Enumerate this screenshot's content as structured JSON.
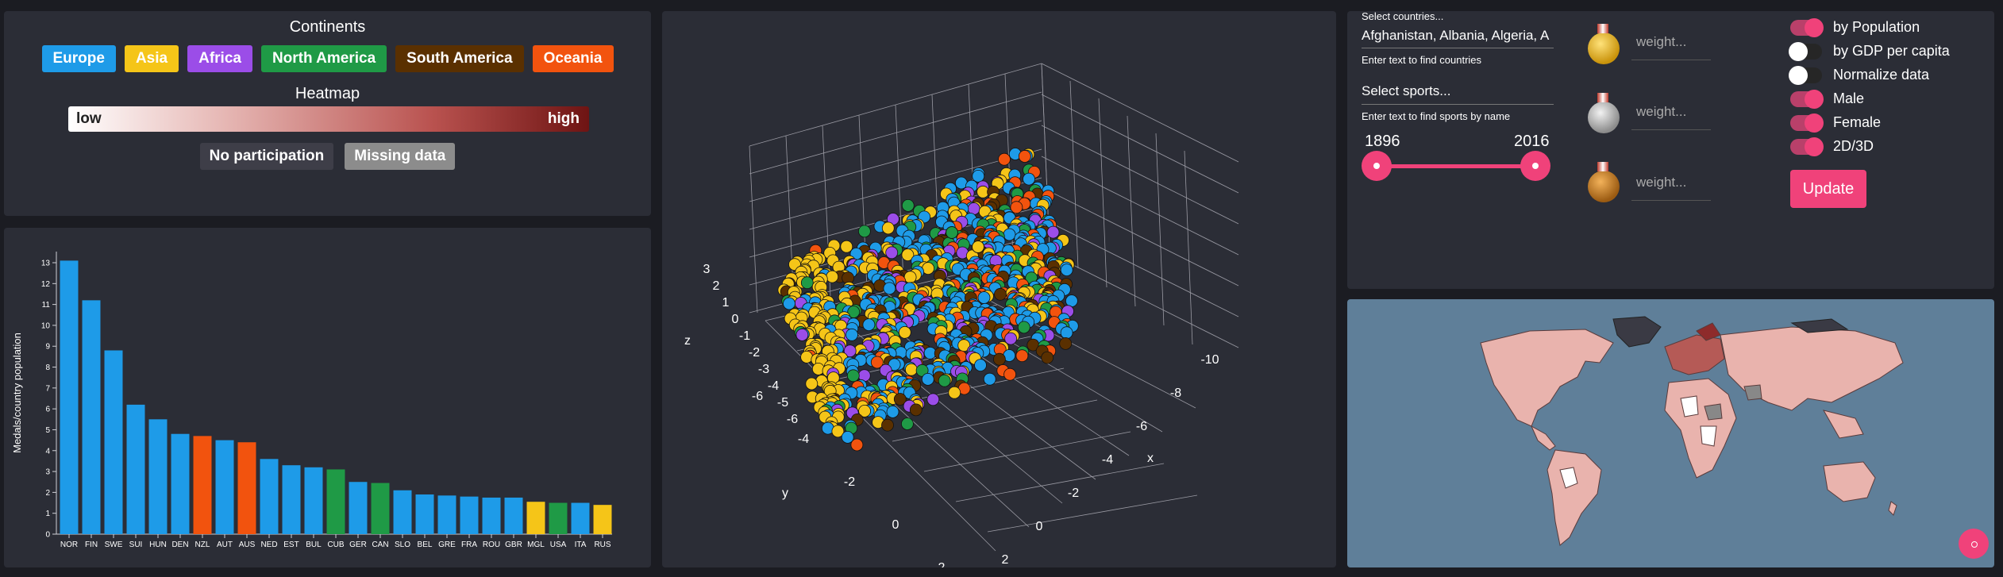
{
  "legend": {
    "continents_title": "Continents",
    "continents": [
      {
        "name": "Europe",
        "color": "#1e9be8"
      },
      {
        "name": "Asia",
        "color": "#f5c518"
      },
      {
        "name": "Africa",
        "color": "#9b4de8"
      },
      {
        "name": "North America",
        "color": "#1f9a46"
      },
      {
        "name": "South America",
        "color": "#5a3000"
      },
      {
        "name": "Oceania",
        "color": "#f2530e"
      }
    ],
    "heatmap_title": "Heatmap",
    "low": "low",
    "high": "high",
    "no_participation": "No participation",
    "missing_data": "Missing data"
  },
  "chart_data": [
    {
      "type": "bar",
      "ylabel": "Medals/country population",
      "xlabel": "",
      "ylim": [
        0,
        13
      ],
      "categories": [
        "NOR",
        "FIN",
        "SWE",
        "SUI",
        "HUN",
        "DEN",
        "NZL",
        "AUT",
        "AUS",
        "NED",
        "EST",
        "BUL",
        "CUB",
        "GER",
        "CAN",
        "SLO",
        "BEL",
        "GRE",
        "FRA",
        "ROU",
        "GBR",
        "MGL",
        "USA",
        "ITA",
        "RUS"
      ],
      "values": [
        13.1,
        11.2,
        8.8,
        6.2,
        5.5,
        4.8,
        4.7,
        4.5,
        4.4,
        3.6,
        3.3,
        3.2,
        3.1,
        2.5,
        2.45,
        2.1,
        1.9,
        1.85,
        1.8,
        1.75,
        1.75,
        1.55,
        1.5,
        1.5,
        1.4
      ],
      "colors": [
        "#1e9be8",
        "#1e9be8",
        "#1e9be8",
        "#1e9be8",
        "#1e9be8",
        "#1e9be8",
        "#f2530e",
        "#1e9be8",
        "#f2530e",
        "#1e9be8",
        "#1e9be8",
        "#1e9be8",
        "#1f9a46",
        "#1e9be8",
        "#1f9a46",
        "#1e9be8",
        "#1e9be8",
        "#1e9be8",
        "#1e9be8",
        "#1e9be8",
        "#1e9be8",
        "#f5c518",
        "#1f9a46",
        "#1e9be8",
        "#f5c518"
      ],
      "yticks": [
        0,
        1,
        2,
        3,
        4,
        5,
        6,
        7,
        8,
        9,
        10,
        11,
        12,
        13
      ]
    },
    {
      "type": "scatter",
      "axes": {
        "x": "x",
        "y": "y",
        "z": "z"
      },
      "x_ticks": [
        "-10",
        "-8",
        "-6",
        "-4",
        "-2",
        "0",
        "2"
      ],
      "y_ticks": [
        "-6",
        "-4",
        "-2",
        "0",
        "2"
      ],
      "z_ticks": [
        "3",
        "2",
        "1",
        "0",
        "-1",
        "-2",
        "-3",
        "-4",
        "-5",
        "-6"
      ]
    }
  ],
  "controls": {
    "countries_label": "Select countries...",
    "countries_value": "Afghanistan, Albania, Algeria, A",
    "countries_helper": "Enter text to find countries",
    "sports_placeholder": "Select sports...",
    "sports_helper": "Enter text to find sports by name",
    "year_min": "1896",
    "year_max": "2016",
    "weight_placeholder": "weight...",
    "toggles": [
      {
        "label": "by Population",
        "on": true
      },
      {
        "label": "by GDP per capita",
        "on": false
      },
      {
        "label": "Normalize data",
        "on": false
      },
      {
        "label": "Male",
        "on": true
      },
      {
        "label": "Female",
        "on": true
      },
      {
        "label": "2D/3D",
        "on": true
      }
    ],
    "update": "Update",
    "accent": "#f0427a"
  }
}
